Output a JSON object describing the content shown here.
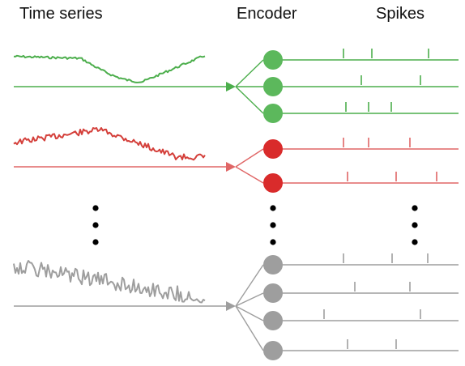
{
  "headers": {
    "time_series": "Time series",
    "encoder": "Encoder",
    "spikes": "Spikes"
  },
  "colors": {
    "green": "#4cae4c",
    "green_fill": "#5cb85c",
    "red_wave": "#d43f3a",
    "red_line": "#e06666",
    "red_fill": "#d92b2b",
    "gray": "#9e9e9e",
    "gray_fill": "#9e9e9e",
    "dots": "#000000"
  },
  "groups": [
    {
      "id": "green",
      "wave_color": "green",
      "line_color": "green",
      "neuron_color": "green_fill",
      "neurons": [
        {
          "spikes": [
            424,
            459,
            529
          ]
        },
        {
          "spikes": [
            446,
            519
          ]
        },
        {
          "spikes": [
            427,
            455,
            483
          ]
        }
      ]
    },
    {
      "id": "red",
      "wave_color": "red_wave",
      "line_color": "red_line",
      "neuron_color": "red_fill",
      "neurons": [
        {
          "spikes": [
            424,
            455,
            506
          ]
        },
        {
          "spikes": [
            429,
            489,
            539
          ]
        }
      ]
    },
    {
      "id": "gray",
      "wave_color": "gray",
      "line_color": "gray",
      "neuron_color": "gray_fill",
      "neurons": [
        {
          "spikes": [
            424,
            484,
            528
          ]
        },
        {
          "spikes": [
            438,
            506
          ]
        },
        {
          "spikes": [
            400,
            519
          ]
        },
        {
          "spikes": [
            429,
            489
          ]
        }
      ]
    }
  ]
}
